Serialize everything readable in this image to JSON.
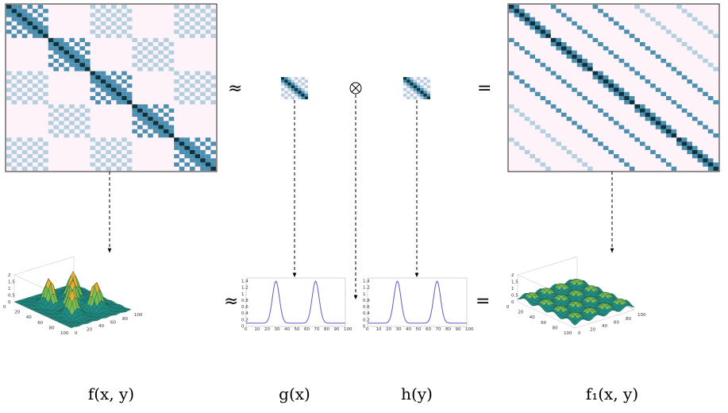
{
  "operators": {
    "approx_top": "≈",
    "approx_bottom": "≈",
    "kron": "⊗",
    "equals_top": "=",
    "equals_bottom": "="
  },
  "labels": {
    "f": "f(x, y)",
    "g": "g(x)",
    "h": "h(y)",
    "f1": "f₁(x, y)"
  },
  "axis_ticks": {
    "z": [
      "0",
      "0.5",
      "1",
      "1.5",
      "2"
    ],
    "x": [
      "0",
      "20",
      "40",
      "60",
      "80",
      "100"
    ],
    "y": [
      "0",
      "20",
      "40",
      "60",
      "80",
      "100"
    ],
    "profile_y": [
      "0",
      "0.2",
      "0.4",
      "0.6",
      "0.8",
      "1",
      "1.2",
      "1.4"
    ],
    "profile_x": [
      "0",
      "10",
      "20",
      "30",
      "40",
      "50",
      "60",
      "70",
      "80",
      "90",
      "100"
    ]
  },
  "colors": {
    "matrix_dark": "#0b3440",
    "matrix_mid": "#4d8fb0",
    "matrix_light": "#b4cfe0",
    "matrix_bg": "#fdf3f8",
    "surface_low": "#1f8f86",
    "surface_high": "#e8b030",
    "curve": "#5b5fc7",
    "arrow": "#000000"
  },
  "icons": {
    "kron": "circle-times-icon"
  }
}
